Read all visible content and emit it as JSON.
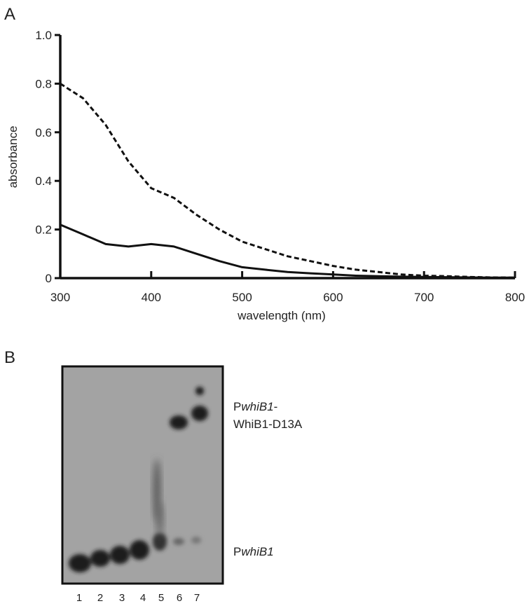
{
  "panel_labels": [
    "A",
    "B"
  ],
  "chart_data": {
    "type": "line",
    "x_label": "wavelength (nm)",
    "y_label": "absorbance",
    "x": [
      300,
      325,
      350,
      375,
      400,
      425,
      450,
      475,
      500,
      525,
      550,
      575,
      600,
      625,
      650,
      675,
      700,
      725,
      750,
      775,
      800
    ],
    "series": [
      {
        "color": "#111111",
        "line_style": "dashed",
        "values": [
          0.8,
          0.74,
          0.63,
          0.48,
          0.37,
          0.33,
          0.26,
          0.2,
          0.15,
          0.12,
          0.09,
          0.07,
          0.05,
          0.035,
          0.025,
          0.015,
          0.01,
          0.008,
          0.005,
          0.003,
          0.002
        ]
      },
      {
        "color": "#111111",
        "line_style": "solid",
        "values": [
          0.22,
          0.18,
          0.14,
          0.13,
          0.14,
          0.13,
          0.1,
          0.07,
          0.045,
          0.035,
          0.025,
          0.02,
          0.015,
          0.01,
          0.008,
          0.006,
          0.005,
          0.004,
          0.003,
          0.002,
          0.002
        ]
      }
    ],
    "xlim": [
      300,
      800
    ],
    "xticks": [
      300,
      400,
      500,
      600,
      700,
      800
    ],
    "ylim": [
      0,
      1
    ],
    "yticks": [
      0,
      0.2,
      0.4,
      0.6,
      0.8,
      {
        "value": 1,
        "label": "1.0"
      }
    ]
  },
  "gel": {
    "lanes": [
      "1",
      "2",
      "3",
      "4",
      "5",
      "6",
      "7"
    ],
    "complex_label": {
      "prefix": "P",
      "italic": "whiB1",
      "suffix": "-",
      "line2": "WhiB1-D13A"
    },
    "free_label": {
      "prefix": "P",
      "italic": "whiB1"
    }
  }
}
